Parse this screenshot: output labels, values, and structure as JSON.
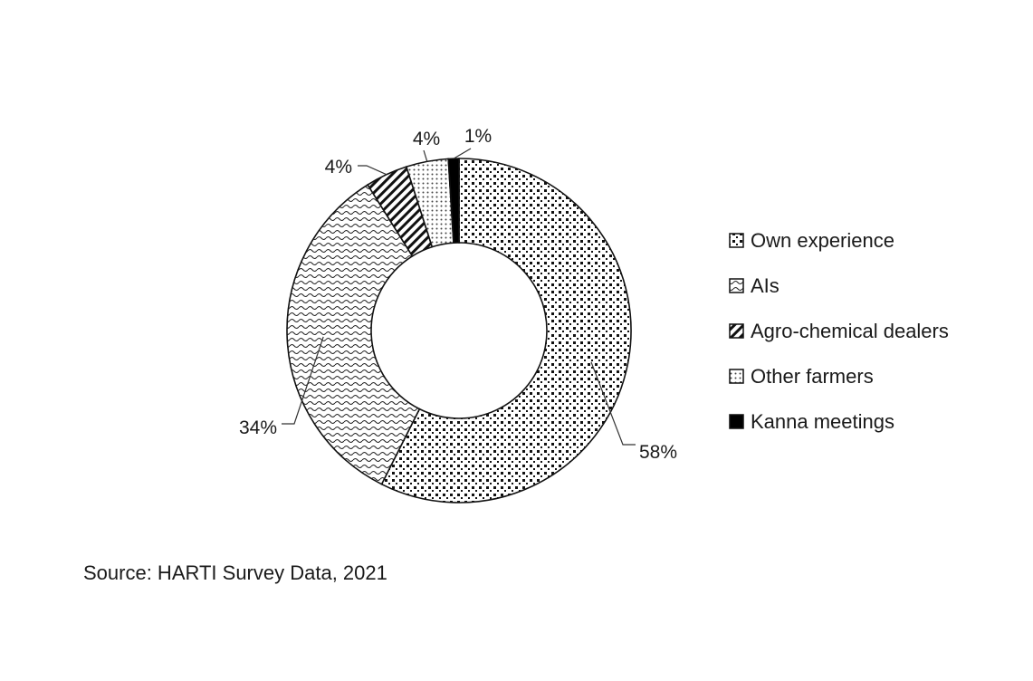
{
  "chart_data": {
    "type": "pie",
    "donut": true,
    "categories": [
      "Own experience",
      "AIs",
      "Agro-chemical dealers",
      "Other farmers",
      "Kanna meetings"
    ],
    "values": [
      58,
      34,
      4,
      4,
      1
    ],
    "labels": [
      "58%",
      "34%",
      "4%",
      "4%",
      "1%"
    ],
    "unit": "%",
    "legend_position": "right",
    "patterns": [
      "dotted-squares",
      "wavy",
      "diagonal-hatch",
      "fine-dots",
      "solid-black"
    ],
    "colors": [
      "#000000",
      "#ffffff"
    ]
  },
  "source_note": "Source: HARTI Survey Data, 2021"
}
